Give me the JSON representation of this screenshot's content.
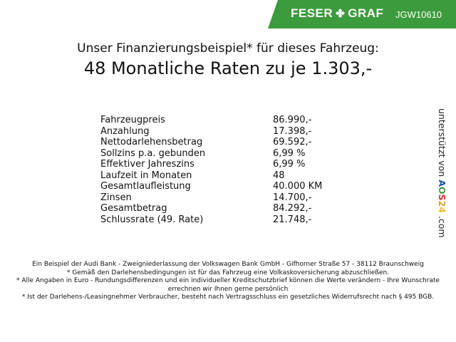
{
  "header": {
    "brand_left": "FESER",
    "brand_right": "GRAF",
    "code": "JGW10610",
    "brand_color": "#3c9b3c"
  },
  "title": {
    "line1": "Unser Finanzierungsbeispiel* für dieses Fahrzeug:",
    "line2": "48 Monatliche Raten zu je 1.303,-"
  },
  "rows": [
    {
      "label": "Fahrzeugpreis",
      "value": "86.990,-"
    },
    {
      "label": "Anzahlung",
      "value": "17.398,-"
    },
    {
      "label": "Nettodarlehensbetrag",
      "value": "69.592,-"
    },
    {
      "label": "Sollzins p.a. gebunden",
      "value": "6,99 %"
    },
    {
      "label": "Effektiver Jahreszins",
      "value": "6,99 %"
    },
    {
      "label": "Laufzeit in Monaten",
      "value": "48"
    },
    {
      "label": "Gesamtlaufleistung",
      "value": "40.000 KM"
    },
    {
      "label": "Zinsen",
      "value": "14.700,-"
    },
    {
      "label": "Gesamtbetrag",
      "value": "84.292,-"
    },
    {
      "label": "Schlussrate (49. Rate)",
      "value": "21.748,-"
    }
  ],
  "side": {
    "text": "unterstützt von",
    "a": "A",
    "o": "O",
    "s": "S",
    "two": "2",
    "four": "4",
    "com": ".com"
  },
  "footer": [
    "Ein Beispiel der Audi Bank - Zweigniederlassung der Volkswagen Bank GmbH - Gifhorner Straße 57 - 38112 Braunschweig",
    "* Gemäß den Darlehensbedingungen ist für das Fahrzeug eine Volkaskoversicherung abzuschließen.",
    "* Alle Angaben in Euro - Rundungsdifferenzen und ein individueller Kreditschutzbrief können die Werte verändern - Ihre Wunschrate errechnen wir Ihnen gerne persönlich",
    "* Ist der Darlehens-/Leasingnehmer Verbraucher, besteht nach Vertragsschluss ein gesetzliches Widerrufsrecht nach § 495 BGB."
  ]
}
